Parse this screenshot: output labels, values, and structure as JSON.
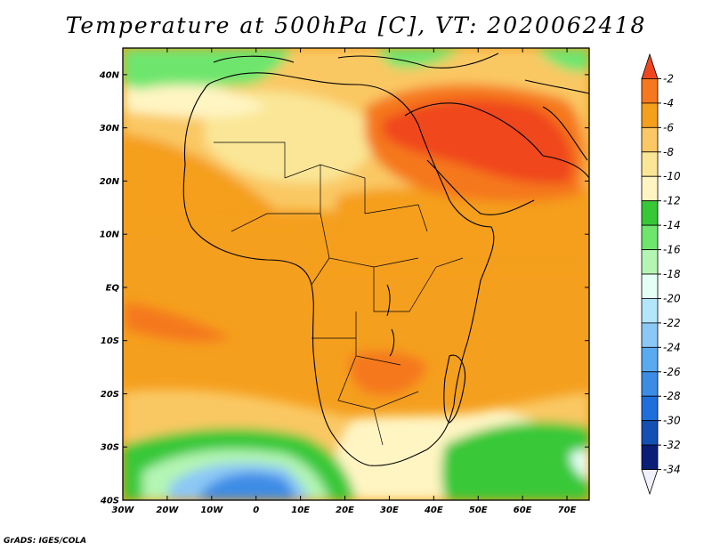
{
  "title": "Temperature at 500hPa [C], VT: 2020062418",
  "credit": "GrADS: IGES/COLA",
  "lat_ticks": [
    "40N",
    "30N",
    "20N",
    "10N",
    "EQ",
    "10S",
    "20S",
    "30S",
    "40S"
  ],
  "lon_ticks": [
    "30W",
    "20W",
    "10W",
    "0",
    "10E",
    "20E",
    "30E",
    "40E",
    "50E",
    "60E",
    "70E"
  ],
  "colorbar": {
    "labels": [
      "-2",
      "-4",
      "-6",
      "-8",
      "-10",
      "-12",
      "-14",
      "-16",
      "-18",
      "-20",
      "-22",
      "-24",
      "-26",
      "-28",
      "-30",
      "-32",
      "-34"
    ],
    "colors": [
      "#f0461e",
      "#f5781e",
      "#f59f1e",
      "#fac864",
      "#fae696",
      "#fff5c3",
      "#37c837",
      "#6ee66e",
      "#b4f5b4",
      "#e6fff6",
      "#b4e6fa",
      "#8cc8f5",
      "#5aaaf0",
      "#3c8ce6",
      "#1e6edc",
      "#1450b4",
      "#0a1e78",
      "#f0f0fa"
    ]
  },
  "map": {
    "extent": {
      "lon_min": -30,
      "lon_max": 75,
      "lat_min": -40,
      "lat_max": 45
    },
    "field_background_color": "#f59f1e"
  }
}
